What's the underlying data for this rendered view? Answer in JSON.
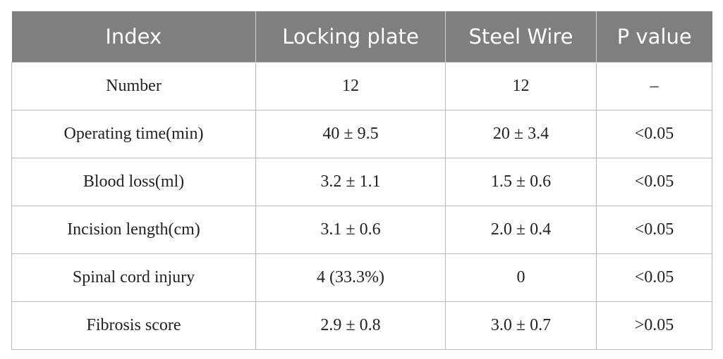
{
  "table": {
    "headers": [
      "Index",
      "Locking plate",
      "Steel Wire",
      "P value"
    ],
    "rows": [
      [
        "Number",
        "12",
        "12",
        "–"
      ],
      [
        "Operating time(min)",
        "40 ± 9.5",
        "20 ± 3.4",
        "<0.05"
      ],
      [
        "Blood loss(ml)",
        "3.2 ± 1.1",
        "1.5 ± 0.6",
        "<0.05"
      ],
      [
        "Incision length(cm)",
        "3.1 ± 0.6",
        "2.0 ± 0.4",
        "<0.05"
      ],
      [
        "Spinal cord injury",
        "4 (33.3%)",
        "0",
        "<0.05"
      ],
      [
        "Fibrosis score",
        "2.9 ± 0.8",
        "3.0 ± 0.7",
        ">0.05"
      ]
    ]
  },
  "colors": {
    "header_background": "#7f7f7f",
    "header_text": "#ffffff",
    "border": "#b9b9b9"
  }
}
